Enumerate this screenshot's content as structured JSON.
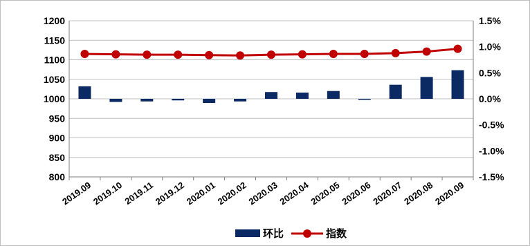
{
  "chart_data": {
    "type": "bar+line",
    "title": "",
    "categories": [
      "2019.09",
      "2019.10",
      "2019.11",
      "2019.12",
      "2020.01",
      "2020.02",
      "2020.03",
      "2020.04",
      "2020.05",
      "2020.06",
      "2020.07",
      "2020.08",
      "2020.09"
    ],
    "series": [
      {
        "name": "环比",
        "type": "bar",
        "axis": "right",
        "color": "#0b2a63",
        "values": [
          0.24,
          -0.06,
          -0.05,
          -0.03,
          -0.08,
          -0.05,
          0.13,
          0.12,
          0.15,
          -0.02,
          0.27,
          0.42,
          0.55
        ]
      },
      {
        "name": "指数",
        "type": "line",
        "axis": "left",
        "color": "#c00000",
        "values": [
          1115,
          1114,
          1113,
          1113,
          1112,
          1111,
          1113,
          1114,
          1115,
          1115,
          1117,
          1121,
          1128
        ]
      }
    ],
    "y_left": {
      "min": 800,
      "max": 1200,
      "step": 50,
      "ticks": [
        "1200",
        "1150",
        "1100",
        "1050",
        "1000",
        "950",
        "900",
        "850",
        "800"
      ]
    },
    "y_right": {
      "min": -1.5,
      "max": 1.5,
      "ticks": [
        "1.5%",
        "1.0%",
        "0.5%",
        "0.0%",
        "-0.5%",
        "-1.0%",
        "-1.5%"
      ]
    },
    "grid": "horizontal",
    "legend": "bottom"
  }
}
